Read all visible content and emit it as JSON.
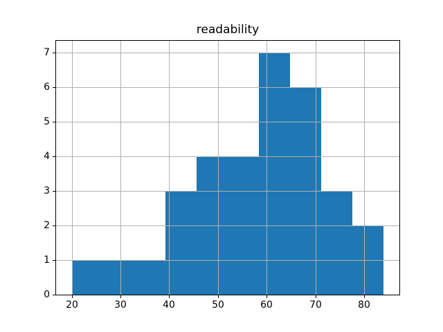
{
  "figure": {
    "background": "#ffffff",
    "text_color": "#000000",
    "spine_color": "#000000"
  },
  "chart_data": {
    "type": "bar",
    "subtype": "histogram",
    "title": "readability",
    "xlabel": "",
    "ylabel": "",
    "bar_color": "#1f77b4",
    "grid_color": "#b0b0b0",
    "grid": true,
    "legend": false,
    "bin_edges": [
      20.0,
      26.4,
      32.8,
      39.2,
      45.6,
      52.0,
      58.4,
      64.8,
      71.2,
      77.6,
      84.0
    ],
    "counts": [
      1,
      1,
      1,
      3,
      4,
      4,
      7,
      6,
      3,
      2
    ],
    "xlim": [
      16.8,
      87.2
    ],
    "ylim": [
      0,
      7.35
    ],
    "xticks": [
      20,
      30,
      40,
      50,
      60,
      70,
      80
    ],
    "yticks": [
      0,
      1,
      2,
      3,
      4,
      5,
      6,
      7
    ]
  }
}
